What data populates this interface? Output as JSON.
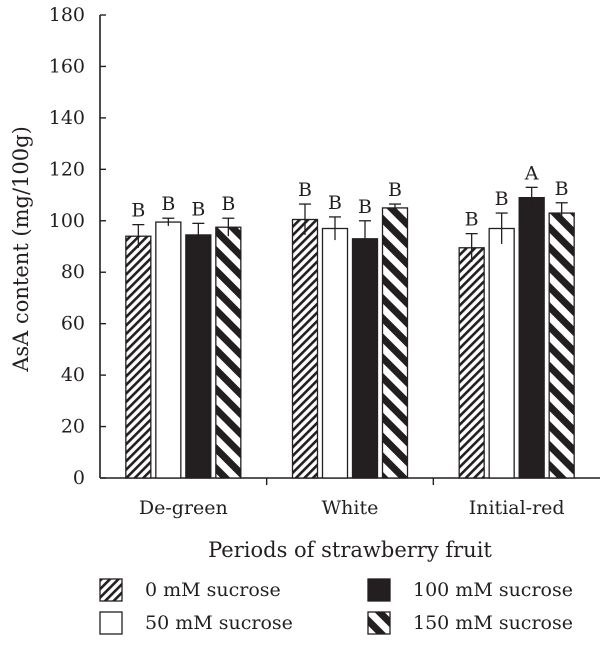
{
  "chart_data": {
    "type": "bar",
    "xlabel": "Periods of strawberry fruit",
    "ylabel": "AsA content (mg/100g)",
    "ylim": [
      0,
      180
    ],
    "yticks": [
      0,
      20,
      40,
      60,
      80,
      100,
      120,
      140,
      160,
      180
    ],
    "categories": [
      "De-green",
      "White",
      "Initial-red"
    ],
    "grid": false,
    "legend_position": "bottom",
    "series": [
      {
        "name": "0 mM sucrose",
        "pattern": "diagonal-hatch",
        "values": [
          94,
          100.5,
          89.5
        ],
        "errors": [
          4.5,
          6,
          5.5
        ],
        "letters": [
          "B",
          "B",
          "B"
        ]
      },
      {
        "name": "50 mM sucrose",
        "pattern": "white",
        "values": [
          99.5,
          97,
          97
        ],
        "errors": [
          1.5,
          4.5,
          6
        ],
        "letters": [
          "B",
          "B",
          "B"
        ]
      },
      {
        "name": "100 mM sucrose",
        "pattern": "black",
        "values": [
          94.5,
          93,
          109
        ],
        "errors": [
          4.5,
          7,
          4
        ],
        "letters": [
          "B",
          "B",
          "A"
        ]
      },
      {
        "name": "150 mM sucrose",
        "pattern": "bold-stripe",
        "values": [
          97.5,
          105,
          103
        ],
        "errors": [
          3.5,
          1.5,
          4
        ],
        "letters": [
          "B",
          "B",
          "B"
        ]
      }
    ]
  }
}
